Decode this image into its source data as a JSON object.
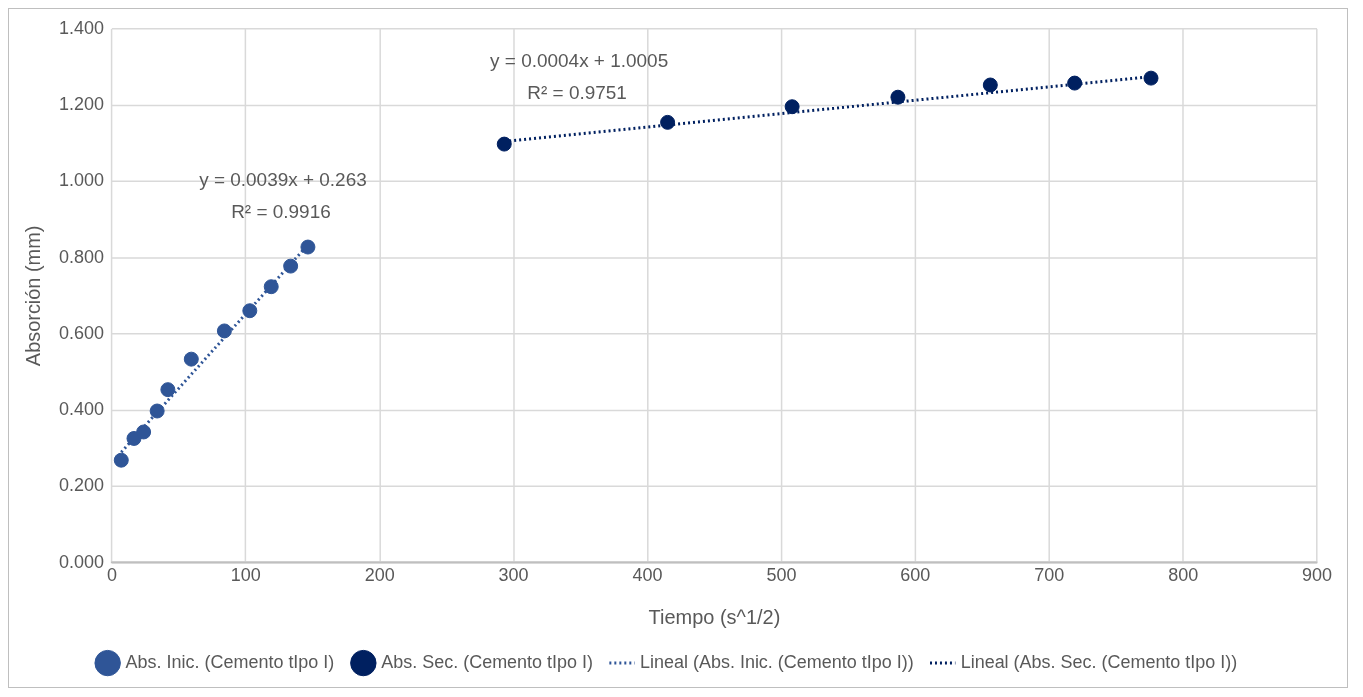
{
  "chart_data": {
    "type": "scatter",
    "xlabel": "Tiempo (s^1/2)",
    "ylabel": "Absorción (mm)",
    "xlim": [
      0,
      900
    ],
    "xticks": [
      0,
      100,
      200,
      300,
      400,
      500,
      600,
      700,
      800,
      900
    ],
    "ylim": [
      0,
      1.4
    ],
    "yticks": [
      {
        "value": 0,
        "label": "0.000"
      },
      {
        "value": 0.2,
        "label": "0.200"
      },
      {
        "value": 0.4,
        "label": "0.400"
      },
      {
        "value": 0.6,
        "label": "0.600"
      },
      {
        "value": 0.8,
        "label": "0.800"
      },
      {
        "value": 1,
        "label": "1.000"
      },
      {
        "value": 1.2,
        "label": "1.200"
      },
      {
        "value": 1.4,
        "label": "1.400"
      }
    ],
    "grid": true,
    "legend": "bottom",
    "marker": "circle",
    "series": [
      {
        "name": "Abs. Inic. (Cemento tIpo I)",
        "color": "#2f5597",
        "x": [
          7,
          16.5,
          23.7,
          33.8,
          41.8,
          59.3,
          84,
          103,
          119,
          133.5,
          146.4
        ],
        "values": [
          0.269,
          0.326,
          0.343,
          0.398,
          0.454,
          0.534,
          0.608,
          0.661,
          0.724,
          0.778,
          0.828
        ]
      },
      {
        "name": "Abs. Sec. (Cemento tIpo I)",
        "color": "#002060",
        "x": [
          293,
          415,
          508,
          587,
          656,
          719,
          776
        ],
        "values": [
          1.098,
          1.155,
          1.196,
          1.221,
          1.253,
          1.258,
          1.271
        ]
      },
      {
        "name": "Lineal (Abs. Inic. (Cemento tIpo I))",
        "type": "line",
        "line_style": "dotted",
        "marker": "none",
        "color": "#2f5597",
        "x": [
          7,
          146.4
        ],
        "values": [
          0.29,
          0.834
        ]
      },
      {
        "name": "Lineal (Abs. Sec. (Cemento tIpo I))",
        "type": "line",
        "line_style": "dotted",
        "marker": "none",
        "color": "#002060",
        "x": [
          293,
          776
        ],
        "values": [
          1.105,
          1.275
        ]
      }
    ],
    "annotations": [
      "y = 0.0039x + 0.263",
      "R² = 0.9916",
      "y = 0.0004x + 1.0005",
      "R² = 0.9751"
    ]
  }
}
